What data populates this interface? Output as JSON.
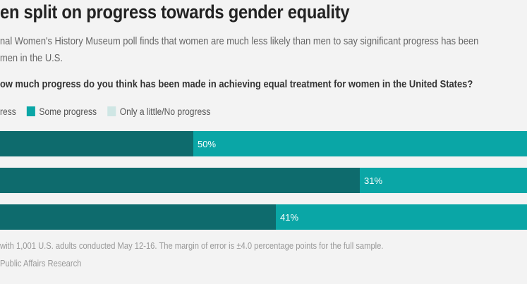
{
  "header": {
    "title": "en split on progress towards gender equality",
    "subtitle_line1": "nal Women's History Museum poll finds that women are much less likely than men to say significant progress has been",
    "subtitle_line2": "men in the U.S.",
    "question": "ow much progress do you think has been made in achieving equal treatment for women in the United States?"
  },
  "legend": {
    "items": [
      {
        "label": "ress",
        "color": "#0e6b6d"
      },
      {
        "label": "Some progress",
        "color": "#0aa6a6"
      },
      {
        "label": "Only a little/No progress",
        "color": "#cfe6e4"
      }
    ]
  },
  "chart_data": {
    "type": "bar",
    "orientation": "horizontal",
    "stacked": true,
    "categories": [
      "",
      "",
      ""
    ],
    "series": [
      {
        "name": "ress",
        "color": "#0e6b6d",
        "values": [
          null,
          null,
          null
        ]
      },
      {
        "name": "Some progress",
        "color": "#0aa6a6",
        "values": [
          50,
          31,
          41
        ]
      },
      {
        "name": "Only a little/No progress",
        "color": "#cfe6e4",
        "values": [
          null,
          null,
          null
        ]
      }
    ],
    "data_labels": [
      "50%",
      "31%",
      "41%"
    ],
    "ylim": [
      0,
      100
    ],
    "legend_position": "top-left"
  },
  "footer": {
    "note": "with 1,001 U.S. adults conducted May 12-16. The margin of error is ±4.0 percentage points for the full sample.",
    "source": "Public Affairs Research"
  }
}
